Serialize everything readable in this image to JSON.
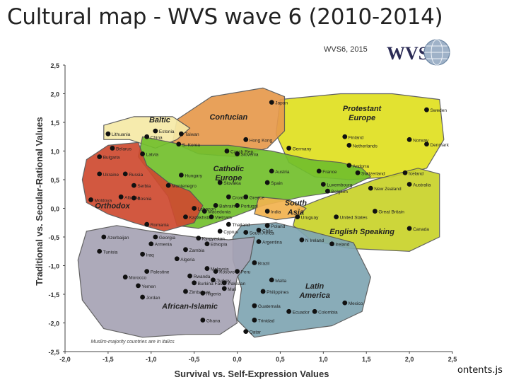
{
  "slide": {
    "title": "Cultural map - WVS wave 6 (2010-2014)",
    "footer_text": "ontents.js",
    "source_label": "WVS6, 2015",
    "logo_text": "WVS"
  },
  "chart_data": {
    "type": "scatter",
    "title": "",
    "xlabel": "Survival vs. Self-Expression Values",
    "ylabel": "Traditional vs. Secular-Rational Values",
    "xlim": [
      -2.0,
      2.5
    ],
    "ylim": [
      -2.5,
      2.5
    ],
    "xticks": [
      "-2,0",
      "-1,5",
      "-1,0",
      "-0,5",
      "0,0",
      "0,5",
      "1,0",
      "1,5",
      "2,0",
      "2,5"
    ],
    "yticks": [
      "2,5",
      "2,0",
      "1,5",
      "1,0",
      "0,5",
      "0,0",
      "-0,5",
      "-1,0",
      "-1,5",
      "-2,0",
      "-2,5"
    ],
    "grid": false,
    "footnote": "Muslim-majority countries are in italics",
    "zone_colors": {
      "Protestant Europe": "#e0e020",
      "English Speaking": "#c9d32a",
      "Confucian": "#e79a4d",
      "Baltic": "#f6eaa7",
      "Catholic Europe": "#72c02c",
      "Orthodox": "#cf4a30",
      "South Asia": "#f2b34f",
      "Latin America": "#7fa6b3",
      "African-Islamic": "#a7a3b5"
    },
    "zones": [
      {
        "name": "Protestant Europe"
      },
      {
        "name": "English Speaking"
      },
      {
        "name": "Confucian"
      },
      {
        "name": "Baltic"
      },
      {
        "name": "Catholic Europe"
      },
      {
        "name": "Orthodox"
      },
      {
        "name": "South Asia"
      },
      {
        "name": "Latin America"
      },
      {
        "name": "African-Islamic"
      }
    ],
    "points": [
      {
        "label": "Japan",
        "x": 0.4,
        "y": 1.85
      },
      {
        "label": "Estonia",
        "x": -0.95,
        "y": 1.35
      },
      {
        "label": "Lithuania",
        "x": -1.5,
        "y": 1.3
      },
      {
        "label": "China",
        "x": -1.05,
        "y": 1.25
      },
      {
        "label": "Taiwan",
        "x": -0.65,
        "y": 1.3
      },
      {
        "label": "S. Korea",
        "x": -0.68,
        "y": 1.12
      },
      {
        "label": "Hong Kong",
        "x": 0.1,
        "y": 1.2
      },
      {
        "label": "Czech Rep.",
        "x": -0.12,
        "y": 1.0
      },
      {
        "label": "Slovenia",
        "x": 0.0,
        "y": 0.95
      },
      {
        "label": "Germany",
        "x": 0.6,
        "y": 1.05
      },
      {
        "label": "Finland",
        "x": 1.25,
        "y": 1.25
      },
      {
        "label": "Netherlands",
        "x": 1.3,
        "y": 1.1
      },
      {
        "label": "Sweden",
        "x": 2.2,
        "y": 1.72
      },
      {
        "label": "Norway",
        "x": 2.0,
        "y": 1.2
      },
      {
        "label": "Denmark",
        "x": 2.2,
        "y": 1.12
      },
      {
        "label": "Belarus",
        "x": -1.45,
        "y": 1.05
      },
      {
        "label": "Bulgaria",
        "x": -1.6,
        "y": 0.9
      },
      {
        "label": "Latvia",
        "x": -1.1,
        "y": 0.95
      },
      {
        "label": "Ukraine",
        "x": -1.6,
        "y": 0.6
      },
      {
        "label": "Russia",
        "x": -1.3,
        "y": 0.6
      },
      {
        "label": "Hungary",
        "x": -0.65,
        "y": 0.58
      },
      {
        "label": "Slovakia",
        "x": -0.2,
        "y": 0.45
      },
      {
        "label": "Austria",
        "x": 0.4,
        "y": 0.65
      },
      {
        "label": "France",
        "x": 0.95,
        "y": 0.65
      },
      {
        "label": "Andorra",
        "x": 1.3,
        "y": 0.75
      },
      {
        "label": "Switzerland",
        "x": 1.4,
        "y": 0.62
      },
      {
        "label": "Iceland",
        "x": 1.95,
        "y": 0.62
      },
      {
        "label": "Luxembourg",
        "x": 1.0,
        "y": 0.42
      },
      {
        "label": "Spain",
        "x": 0.35,
        "y": 0.45
      },
      {
        "label": "Belgium",
        "x": 1.05,
        "y": 0.3
      },
      {
        "label": "New Zealand",
        "x": 1.55,
        "y": 0.35
      },
      {
        "label": "Australia",
        "x": 2.0,
        "y": 0.42
      },
      {
        "label": "Serbia",
        "x": -1.2,
        "y": 0.4
      },
      {
        "label": "Montenegro",
        "x": -0.8,
        "y": 0.4
      },
      {
        "label": "Moldova",
        "x": -1.7,
        "y": 0.15
      },
      {
        "label": "Albania",
        "x": -1.35,
        "y": 0.2
      },
      {
        "label": "Bosnia",
        "x": -1.2,
        "y": 0.18
      },
      {
        "label": "Croatia",
        "x": -0.1,
        "y": 0.2
      },
      {
        "label": "Greece",
        "x": 0.1,
        "y": 0.2
      },
      {
        "label": "Lebanon",
        "x": -0.5,
        "y": 0.0
      },
      {
        "label": "Bahrain",
        "x": -0.25,
        "y": 0.05
      },
      {
        "label": "Portugal",
        "x": 0.0,
        "y": 0.05
      },
      {
        "label": "India",
        "x": 0.35,
        "y": -0.05
      },
      {
        "label": "Macedonia",
        "x": -0.38,
        "y": -0.05
      },
      {
        "label": "Uruguay",
        "x": 0.7,
        "y": -0.15
      },
      {
        "label": "Great Britain",
        "x": 1.6,
        "y": -0.05
      },
      {
        "label": "Kazakhstan",
        "x": -0.6,
        "y": -0.15
      },
      {
        "label": "Vietnam",
        "x": -0.3,
        "y": -0.15
      },
      {
        "label": "United States",
        "x": 1.15,
        "y": -0.15
      },
      {
        "label": "Romania",
        "x": -1.05,
        "y": -0.28
      },
      {
        "label": "Thailand",
        "x": -0.1,
        "y": -0.28
      },
      {
        "label": "Poland",
        "x": 0.35,
        "y": -0.3
      },
      {
        "label": "Chile",
        "x": 0.25,
        "y": -0.38
      },
      {
        "label": "Cyprus",
        "x": -0.2,
        "y": -0.4
      },
      {
        "label": "Canada",
        "x": 2.0,
        "y": -0.35
      },
      {
        "label": "South Africa",
        "x": 0.1,
        "y": -0.42
      },
      {
        "label": "Kyrgyzstan",
        "x": -0.45,
        "y": -0.52
      },
      {
        "label": "Azerbaijan",
        "x": -1.55,
        "y": -0.5
      },
      {
        "label": "Georgia",
        "x": -0.95,
        "y": -0.5
      },
      {
        "label": "Ethiopia",
        "x": -0.35,
        "y": -0.62
      },
      {
        "label": "Armenia",
        "x": -1.0,
        "y": -0.62
      },
      {
        "label": "Zambia",
        "x": -0.6,
        "y": -0.72
      },
      {
        "label": "Argentina",
        "x": 0.25,
        "y": -0.58
      },
      {
        "label": "N Ireland",
        "x": 0.75,
        "y": -0.55
      },
      {
        "label": "Ireland",
        "x": 1.1,
        "y": -0.62
      },
      {
        "label": "Tunisia",
        "x": -1.6,
        "y": -0.75
      },
      {
        "label": "Iraq",
        "x": -1.1,
        "y": -0.8
      },
      {
        "label": "Algeria",
        "x": -0.7,
        "y": -0.88
      },
      {
        "label": "Brazil",
        "x": 0.2,
        "y": -0.95
      },
      {
        "label": "Palestine",
        "x": -1.05,
        "y": -1.1
      },
      {
        "label": "Malaysia",
        "x": -0.35,
        "y": -1.05
      },
      {
        "label": "Kosovo",
        "x": -0.25,
        "y": -1.1
      },
      {
        "label": "Peru",
        "x": 0.0,
        "y": -1.1
      },
      {
        "label": "Rwanda",
        "x": -0.55,
        "y": -1.18
      },
      {
        "label": "Turkey",
        "x": -0.28,
        "y": -1.25
      },
      {
        "label": "Pakistan",
        "x": -0.15,
        "y": -1.3
      },
      {
        "label": "Morocco",
        "x": -1.3,
        "y": -1.2
      },
      {
        "label": "Burkina Faso",
        "x": -0.5,
        "y": -1.3
      },
      {
        "label": "Mali",
        "x": -0.15,
        "y": -1.4
      },
      {
        "label": "Malta",
        "x": 0.4,
        "y": -1.25
      },
      {
        "label": "Yemen",
        "x": -1.15,
        "y": -1.35
      },
      {
        "label": "Zimbabwe",
        "x": -0.6,
        "y": -1.45
      },
      {
        "label": "Nigeria",
        "x": -0.4,
        "y": -1.48
      },
      {
        "label": "Philippines",
        "x": 0.3,
        "y": -1.45
      },
      {
        "label": "Jordan",
        "x": -1.1,
        "y": -1.55
      },
      {
        "label": "Mexico",
        "x": 1.25,
        "y": -1.65
      },
      {
        "label": "Guatemala",
        "x": 0.2,
        "y": -1.7
      },
      {
        "label": "Ecuador",
        "x": 0.6,
        "y": -1.8
      },
      {
        "label": "Colombia",
        "x": 0.9,
        "y": -1.8
      },
      {
        "label": "Ghana",
        "x": -0.4,
        "y": -1.95
      },
      {
        "label": "Trinidad",
        "x": 0.2,
        "y": -1.95
      },
      {
        "label": "Qatar",
        "x": 0.1,
        "y": -2.15
      }
    ]
  }
}
